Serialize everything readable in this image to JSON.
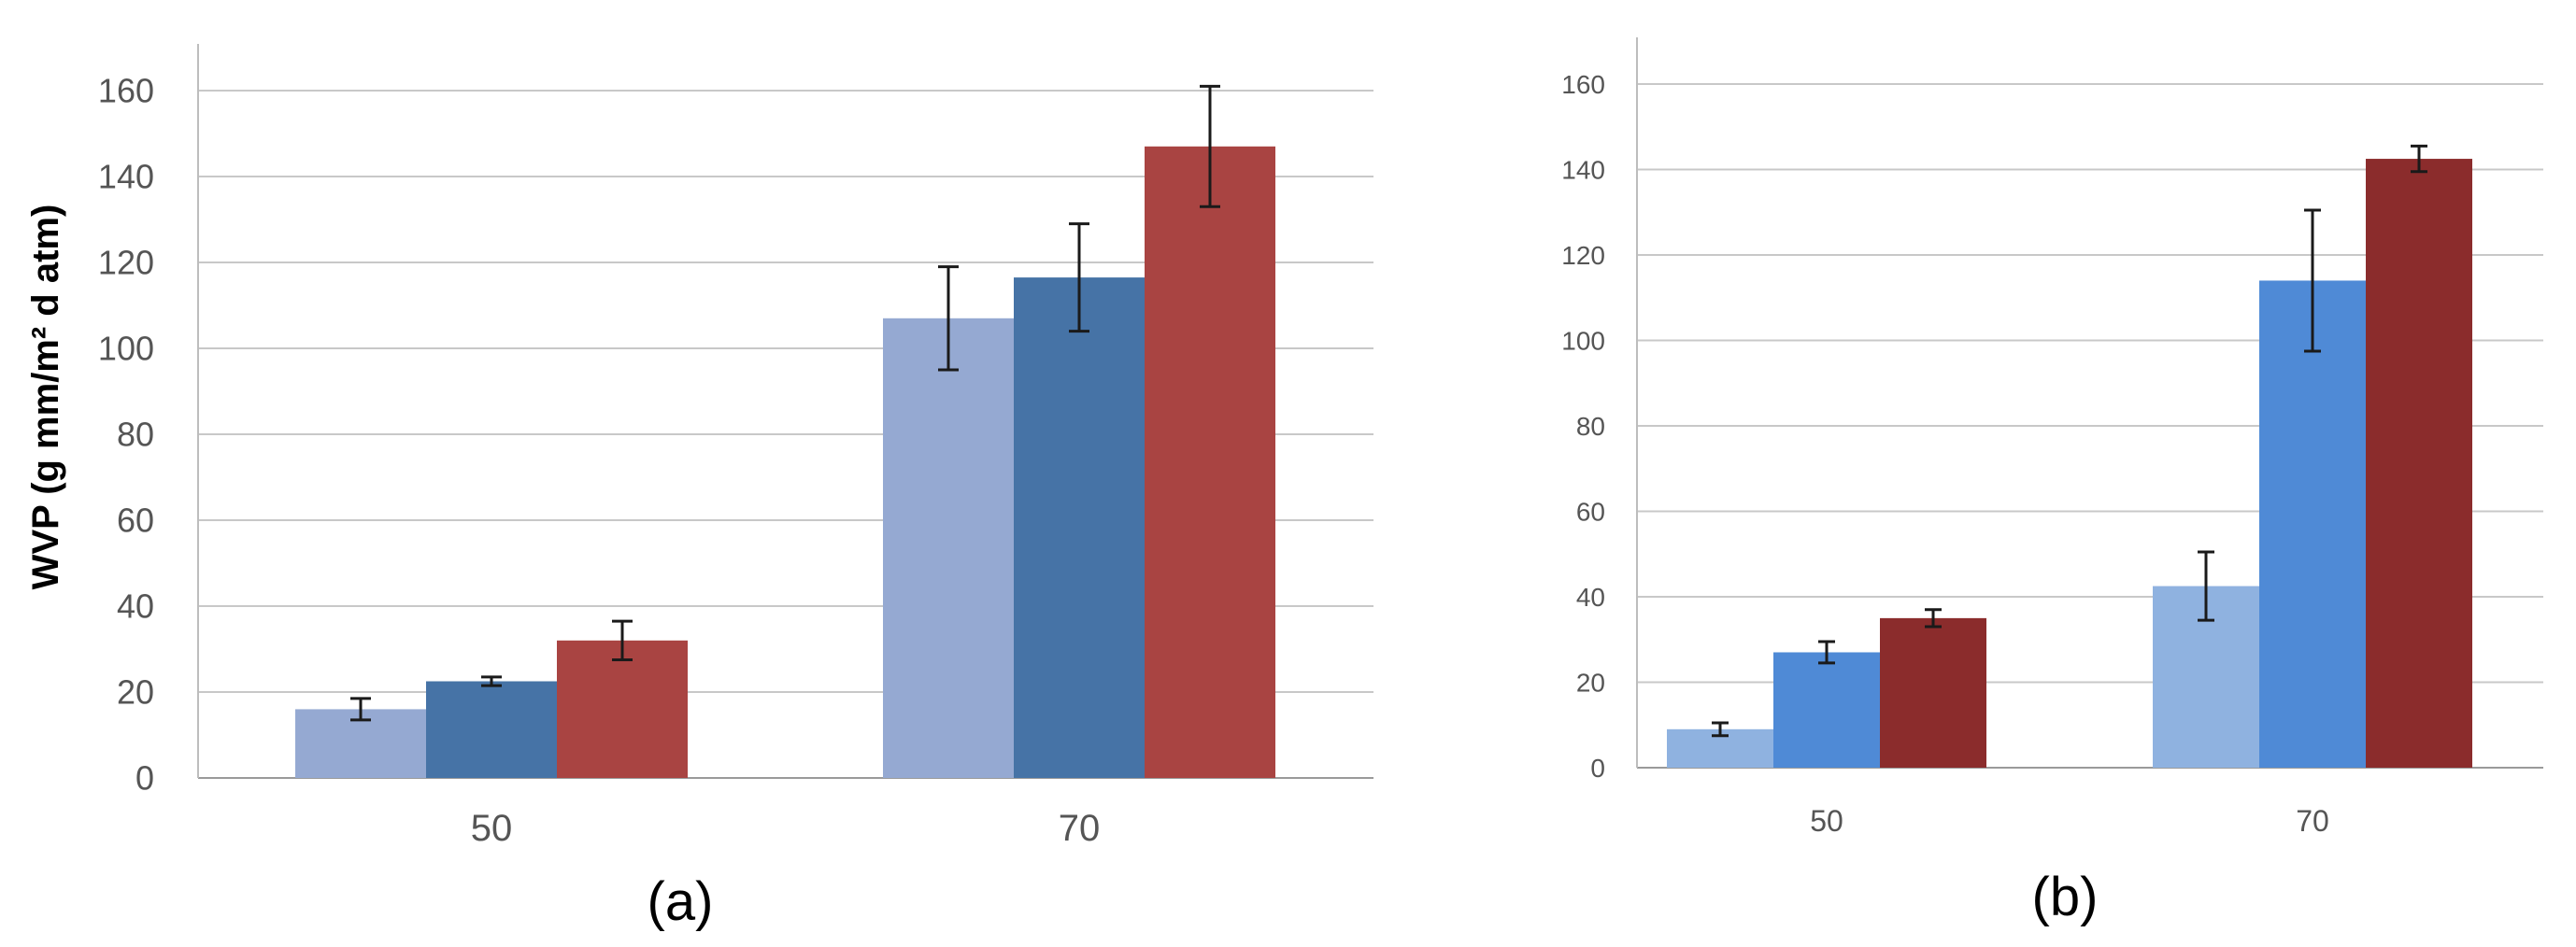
{
  "chart_data": [
    {
      "panel_label": "(a)",
      "type": "bar",
      "ylabel": "WVP (g mm/m² d atm)",
      "ylim": [
        0,
        160
      ],
      "yticks": [
        0,
        20,
        40,
        60,
        80,
        100,
        120,
        140,
        160
      ],
      "categories": [
        "50",
        "70"
      ],
      "grid": true,
      "series": [
        {
          "color": "#95a9d2",
          "values": [
            16,
            107
          ],
          "errors": [
            2.5,
            12
          ]
        },
        {
          "color": "#4673a6",
          "values": [
            22.5,
            116.5
          ],
          "errors": [
            1,
            12.5
          ]
        },
        {
          "color": "#a94442",
          "values": [
            32,
            147
          ],
          "errors": [
            4.5,
            14
          ]
        }
      ]
    },
    {
      "panel_label": "(b)",
      "type": "bar",
      "ylabel": "",
      "ylim": [
        0,
        160
      ],
      "yticks": [
        0,
        20,
        40,
        60,
        80,
        100,
        120,
        140,
        160
      ],
      "categories": [
        "50",
        "70"
      ],
      "grid": true,
      "series": [
        {
          "color": "#8fb2e0",
          "values": [
            9,
            42.5
          ],
          "errors": [
            1.5,
            8
          ]
        },
        {
          "color": "#4f8ad6",
          "values": [
            27,
            114
          ],
          "errors": [
            2.5,
            16.5
          ]
        },
        {
          "color": "#8b2c2c",
          "values": [
            35,
            142.5
          ],
          "errors": [
            2,
            3
          ]
        }
      ]
    }
  ]
}
